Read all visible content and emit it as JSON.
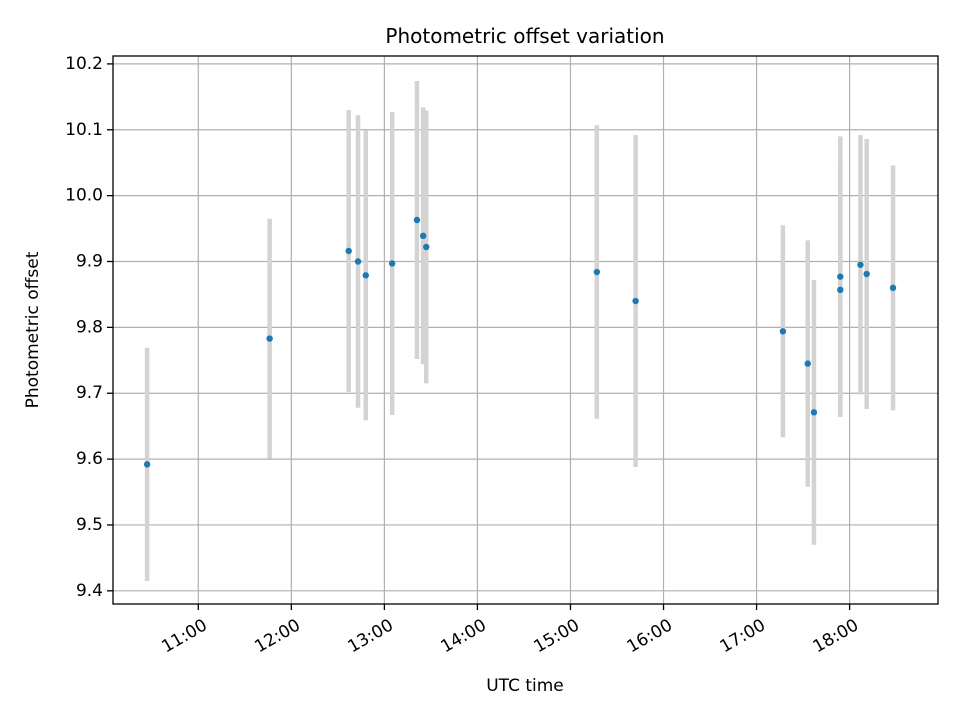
{
  "chart_data": {
    "type": "scatter",
    "title": "Photometric offset variation",
    "xlabel": "UTC time",
    "ylabel": "Photometric offset",
    "xlim": [
      "10:05",
      "18:57"
    ],
    "ylim": [
      9.38,
      10.212
    ],
    "x_ticks": [
      "11:00",
      "12:00",
      "13:00",
      "14:00",
      "15:00",
      "16:00",
      "17:00",
      "18:00"
    ],
    "y_ticks": [
      9.4,
      9.5,
      9.6,
      9.7,
      9.8,
      9.9,
      10.0,
      10.1,
      10.2
    ],
    "grid": true,
    "marker_color": "#1f77b4",
    "errorbar_color": "#d3d3d3",
    "points": [
      {
        "x": "10:27",
        "y": 9.592,
        "err": 0.177
      },
      {
        "x": "11:46",
        "y": 9.783,
        "err": 0.182
      },
      {
        "x": "12:37",
        "y": 9.916,
        "err": 0.214
      },
      {
        "x": "12:43",
        "y": 9.9,
        "err": 0.222
      },
      {
        "x": "12:48",
        "y": 9.879,
        "err": 0.22
      },
      {
        "x": "13:05",
        "y": 9.897,
        "err": 0.23
      },
      {
        "x": "13:21",
        "y": 9.963,
        "err": 0.211
      },
      {
        "x": "13:25",
        "y": 9.939,
        "err": 0.195
      },
      {
        "x": "13:27",
        "y": 9.922,
        "err": 0.207
      },
      {
        "x": "15:17",
        "y": 9.884,
        "err": 0.223
      },
      {
        "x": "15:42",
        "y": 9.84,
        "err": 0.252
      },
      {
        "x": "17:17",
        "y": 9.794,
        "err": 0.161
      },
      {
        "x": "17:33",
        "y": 9.745,
        "err": 0.187
      },
      {
        "x": "17:37",
        "y": 9.671,
        "err": 0.201
      },
      {
        "x": "17:54",
        "y": 9.877,
        "err": 0.213
      },
      {
        "x": "17:54",
        "y": 9.857,
        "err": 0.193
      },
      {
        "x": "18:07",
        "y": 9.895,
        "err": 0.197
      },
      {
        "x": "18:11",
        "y": 9.881,
        "err": 0.205
      },
      {
        "x": "18:28",
        "y": 9.86,
        "err": 0.186
      }
    ]
  }
}
